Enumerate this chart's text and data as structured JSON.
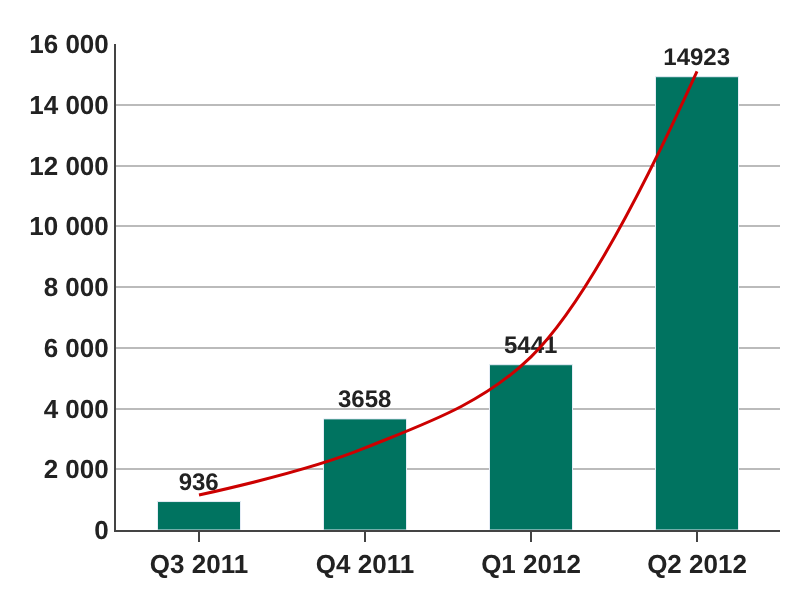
{
  "chart_data": {
    "type": "bar",
    "categories": [
      "Q3 2011",
      "Q4 2011",
      "Q1 2012",
      "Q2 2012"
    ],
    "series": [
      {
        "color": "#007360",
        "values": [
          936,
          3658,
          5441,
          14923
        ],
        "data_labels": true
      },
      {
        "type": "line",
        "color": "#cc0000",
        "values": [
          1150,
          2700,
          5700,
          15100
        ],
        "marker": "none",
        "line_style": "solid"
      }
    ],
    "ylim": [
      0,
      16000
    ],
    "yticks": [
      0,
      {
        "value": 2000,
        "label": "2 000"
      },
      {
        "value": 4000,
        "label": "4 000"
      },
      {
        "value": 6000,
        "label": "6 000"
      },
      {
        "value": 8000,
        "label": "8 000"
      },
      {
        "value": 10000,
        "label": "10 000"
      },
      {
        "value": 12000,
        "label": "12 000"
      },
      {
        "value": 14000,
        "label": "14 000"
      },
      {
        "value": 16000,
        "label": "16 000"
      }
    ],
    "grid": "y"
  }
}
